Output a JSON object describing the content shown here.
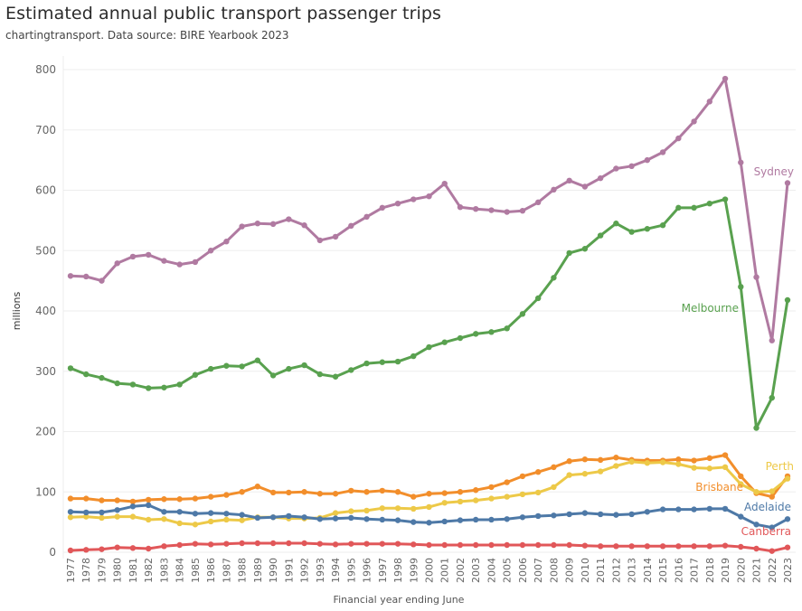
{
  "chart_data": {
    "type": "line",
    "title": "Estimated annual public transport passenger trips",
    "subtitle": "chartingtransport. Data source: BIRE Yearbook 2023",
    "xlabel": "Financial year ending June",
    "ylabel": "millions",
    "ylim": [
      0,
      800
    ],
    "yticks": [
      0,
      100,
      200,
      300,
      400,
      500,
      600,
      700,
      800
    ],
    "grid": true,
    "legend": "direct-labels-right",
    "x": [
      1977,
      1978,
      1979,
      1980,
      1981,
      1982,
      1983,
      1984,
      1985,
      1986,
      1987,
      1988,
      1989,
      1990,
      1991,
      1992,
      1993,
      1994,
      1995,
      1996,
      1997,
      1998,
      1999,
      2000,
      2001,
      2002,
      2003,
      2004,
      2005,
      2006,
      2007,
      2008,
      2009,
      2010,
      2011,
      2012,
      2013,
      2014,
      2015,
      2016,
      2017,
      2018,
      2019,
      2020,
      2021,
      2022,
      2023
    ],
    "series": [
      {
        "name": "Sydney",
        "color": "#b07aa1",
        "values": [
          458,
          457,
          450,
          479,
          490,
          493,
          483,
          477,
          481,
          500,
          515,
          540,
          545,
          544,
          552,
          542,
          517,
          523,
          541,
          556,
          571,
          578,
          585,
          590,
          611,
          572,
          569,
          567,
          564,
          566,
          580,
          601,
          616,
          606,
          620,
          636,
          640,
          650,
          663,
          686,
          714,
          747,
          785,
          646,
          456,
          351,
          612
        ]
      },
      {
        "name": "Melbourne",
        "color": "#59a14f",
        "values": [
          305,
          295,
          289,
          280,
          278,
          272,
          273,
          278,
          294,
          304,
          309,
          308,
          318,
          293,
          304,
          310,
          295,
          291,
          302,
          313,
          315,
          316,
          325,
          340,
          348,
          355,
          362,
          365,
          371,
          395,
          421,
          455,
          496,
          503,
          525,
          545,
          531,
          536,
          542,
          571,
          571,
          578,
          585,
          440,
          206,
          256,
          418
        ]
      },
      {
        "name": "Brisbane",
        "color": "#f28e2b",
        "values": [
          89,
          89,
          86,
          86,
          84,
          87,
          88,
          88,
          89,
          92,
          95,
          100,
          109,
          99,
          99,
          100,
          97,
          97,
          102,
          100,
          102,
          100,
          92,
          97,
          98,
          100,
          103,
          108,
          116,
          126,
          133,
          141,
          151,
          154,
          153,
          157,
          153,
          152,
          152,
          154,
          152,
          156,
          161,
          126,
          98,
          92,
          126
        ]
      },
      {
        "name": "Perth",
        "color": "#edc948",
        "values": [
          58,
          59,
          57,
          59,
          59,
          54,
          55,
          48,
          46,
          51,
          54,
          53,
          58,
          58,
          56,
          56,
          57,
          65,
          68,
          69,
          73,
          73,
          72,
          75,
          82,
          84,
          86,
          89,
          92,
          96,
          99,
          108,
          128,
          130,
          134,
          143,
          150,
          148,
          149,
          146,
          140,
          139,
          141,
          113,
          100,
          101,
          122
        ]
      },
      {
        "name": "Adelaide",
        "color": "#4e79a7",
        "values": [
          67,
          66,
          66,
          70,
          76,
          78,
          67,
          67,
          64,
          65,
          64,
          62,
          57,
          58,
          60,
          58,
          55,
          56,
          57,
          55,
          54,
          53,
          50,
          49,
          51,
          53,
          54,
          54,
          55,
          58,
          60,
          61,
          63,
          65,
          63,
          62,
          63,
          67,
          71,
          71,
          71,
          72,
          72,
          59,
          46,
          41,
          55
        ]
      },
      {
        "name": "Canberra",
        "color": "#e15759",
        "values": [
          3,
          4,
          5,
          8,
          7,
          6,
          10,
          12,
          14,
          13,
          14,
          15,
          15,
          15,
          15,
          15,
          14,
          13,
          14,
          14,
          14,
          14,
          13,
          12,
          12,
          12,
          12,
          12,
          12,
          12,
          12,
          12,
          12,
          11,
          10,
          10,
          10,
          10,
          10,
          10,
          10,
          10,
          11,
          9,
          6,
          2,
          8
        ]
      }
    ]
  }
}
